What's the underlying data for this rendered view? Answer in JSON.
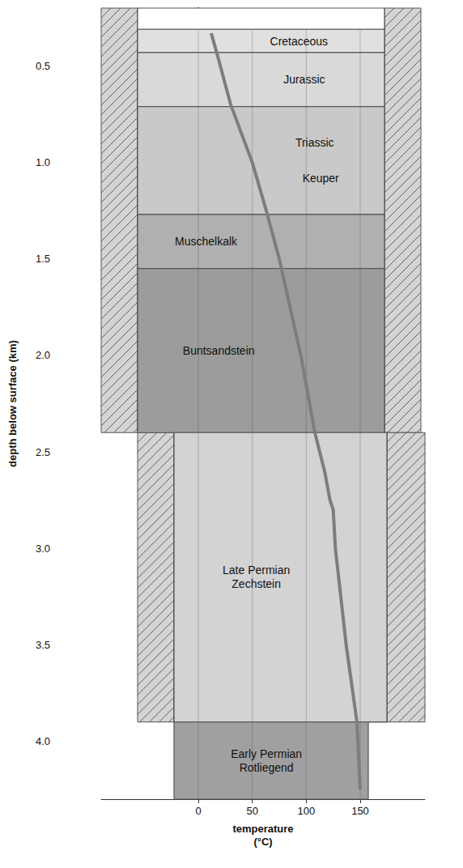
{
  "chart_data": {
    "type": "line",
    "xlabel": "temperature (°C)",
    "ylabel": "depth below surface (km)",
    "xlim": [
      -90,
      210
    ],
    "xticks": [
      0,
      50,
      100,
      150
    ],
    "ylim": [
      0.2,
      4.3
    ],
    "yticks": [
      0.5,
      {
        "value": 1,
        "label": "1.0"
      },
      1.5,
      {
        "value": 2,
        "label": "2.0"
      },
      2.5,
      {
        "value": 3,
        "label": "3.0"
      },
      3.5,
      {
        "value": 4,
        "label": "4.0"
      }
    ],
    "grid": true,
    "color": "#7d7d7d",
    "line_style": "solid",
    "x": [
      12,
      18,
      30,
      50,
      63,
      75,
      95,
      108,
      117,
      122,
      125,
      127,
      137,
      147,
      150
    ],
    "values": [
      0.33,
      0.45,
      0.7,
      1.0,
      1.25,
      1.5,
      2.0,
      2.4,
      2.6,
      2.75,
      2.8,
      3.0,
      3.5,
      3.9,
      4.25
    ],
    "layers": [
      {
        "labels": [
          "Cretaceous"
        ],
        "top": 0.31,
        "bottom": 0.43,
        "color": "#e0e0e0"
      },
      {
        "labels": [
          "Jurassic"
        ],
        "top": 0.43,
        "bottom": 0.71,
        "color": "#d9d9d9"
      },
      {
        "labels": [
          "Triassic",
          "Keuper"
        ],
        "top": 0.71,
        "bottom": 1.27,
        "color": "#c9c9c9"
      },
      {
        "labels": [
          "Muschelkalk"
        ],
        "top": 1.27,
        "bottom": 1.55,
        "color": "#b0b0b0"
      },
      {
        "labels": [
          "Buntsandstein"
        ],
        "top": 1.55,
        "bottom": 2.4,
        "color": "#9c9c9c"
      },
      {
        "labels": [
          "Late Permian Zechstein"
        ],
        "top": 2.4,
        "bottom": 3.9,
        "color": "#d3d3d3"
      },
      {
        "labels": [
          "Early Permian Rotliegend"
        ],
        "top": 3.9,
        "bottom": 4.3,
        "color": "#a0a0a0"
      }
    ],
    "casing": [
      {
        "top": 0.2,
        "bottom": 2.4
      },
      {
        "top": 2.4,
        "bottom": 3.9
      }
    ]
  }
}
